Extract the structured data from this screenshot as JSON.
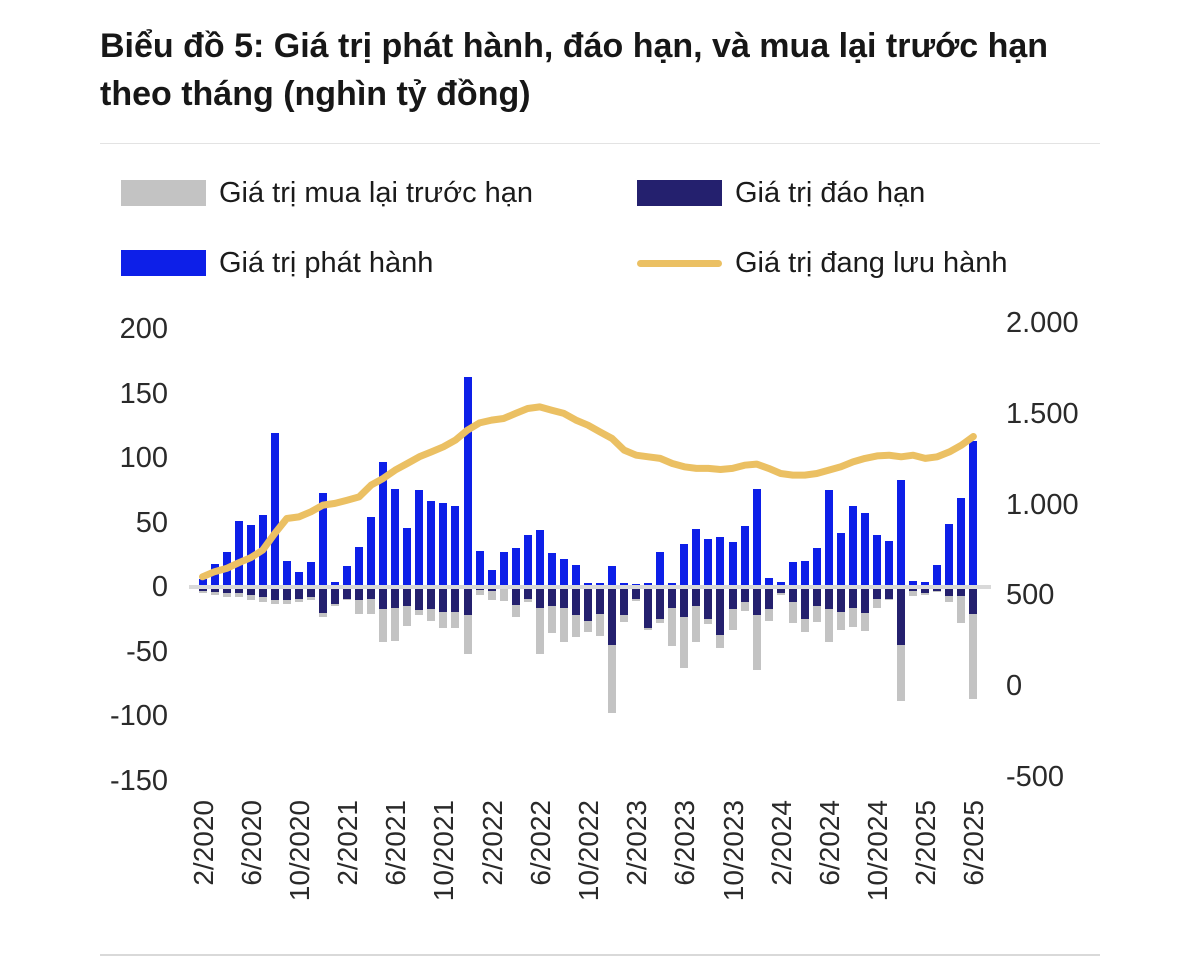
{
  "title": "Biểu đồ 5: Giá trị phát hành, đáo hạn, và mua lại trước hạn theo tháng (nghìn tỷ đồng)",
  "legend": {
    "items": [
      {
        "label": "Giá trị mua lại trước hạn",
        "color": "#c3c3c3",
        "shape": "bar"
      },
      {
        "label": "Giá trị đáo hạn",
        "color": "#24206e",
        "shape": "bar"
      },
      {
        "label": "Giá trị phát hành",
        "color": "#0d1fe8",
        "shape": "bar"
      },
      {
        "label": "Giá trị đang lưu hành",
        "color": "#ebc063",
        "shape": "line"
      }
    ]
  },
  "chart_data": {
    "type": "bar+line",
    "title": "Biểu đồ 5: Giá trị phát hành, đáo hạn, và mua lại trước hạn theo tháng (nghìn tỷ đồng)",
    "x": [
      "2/2020",
      "3/2020",
      "4/2020",
      "5/2020",
      "6/2020",
      "7/2020",
      "8/2020",
      "9/2020",
      "10/2020",
      "11/2020",
      "12/2020",
      "1/2021",
      "2/2021",
      "3/2021",
      "4/2021",
      "5/2021",
      "6/2021",
      "7/2021",
      "8/2021",
      "9/2021",
      "10/2021",
      "11/2021",
      "12/2021",
      "1/2022",
      "2/2022",
      "3/2022",
      "4/2022",
      "5/2022",
      "6/2022",
      "7/2022",
      "8/2022",
      "9/2022",
      "10/2022",
      "11/2022",
      "12/2022",
      "1/2023",
      "2/2023",
      "3/2023",
      "4/2023",
      "5/2023",
      "6/2023",
      "7/2023",
      "8/2023",
      "9/2023",
      "10/2023",
      "11/2023",
      "12/2023",
      "1/2024",
      "2/2024",
      "3/2024",
      "4/2024",
      "5/2024",
      "6/2024",
      "7/2024",
      "8/2024",
      "9/2024",
      "10/2024",
      "11/2024",
      "12/2024",
      "1/2025",
      "2/2025",
      "3/2025",
      "4/2025",
      "5/2025",
      "6/2025"
    ],
    "series": [
      {
        "key": "buyback",
        "name": "Giá trị mua lại trước hạn",
        "type": "bar",
        "stack": "negative",
        "color": "#c3c3c3",
        "axis": "left",
        "values": [
          -2,
          -2,
          -3,
          -3,
          -4,
          -4,
          -3,
          -3,
          -3,
          -2,
          -3,
          -2,
          -1,
          -11,
          -12,
          -26,
          -26,
          -15,
          -4,
          -9,
          -13,
          -13,
          -30,
          -4,
          -7,
          -10,
          -9,
          -3,
          -36,
          -21,
          -27,
          -17,
          -9,
          -17,
          -53,
          -5,
          -2,
          -1,
          -3,
          -30,
          -40,
          -28,
          -4,
          -10,
          -16,
          -7,
          -42,
          -9,
          -1,
          -16,
          -10,
          -12,
          -26,
          -14,
          -15,
          -14,
          -7,
          -1,
          -43,
          -4,
          -1,
          -1,
          -5,
          -21,
          -66
        ]
      },
      {
        "key": "maturity",
        "name": "Giá trị đáo hạn",
        "type": "bar",
        "stack": "negative",
        "color": "#24206e",
        "axis": "left",
        "values": [
          -3,
          -4,
          -5,
          -5,
          -6,
          -8,
          -10,
          -10,
          -9,
          -8,
          -20,
          -13,
          -9,
          -10,
          -9,
          -17,
          -16,
          -15,
          -18,
          -17,
          -19,
          -19,
          -22,
          -2,
          -3,
          -1,
          -14,
          -9,
          -16,
          -15,
          -16,
          -22,
          -26,
          -21,
          -45,
          -22,
          -9,
          -32,
          -25,
          -16,
          -23,
          -15,
          -25,
          -37,
          -17,
          -12,
          -22,
          -17,
          -5,
          -12,
          -25,
          -15,
          -17,
          -19,
          -16,
          -20,
          -9,
          -9,
          -45,
          -3,
          -5,
          -3,
          -7,
          -7,
          -21
        ]
      },
      {
        "key": "issuance",
        "name": "Giá trị phát hành",
        "type": "bar",
        "stack": "positive",
        "color": "#0d1fe8",
        "axis": "left",
        "values": [
          6,
          18,
          27,
          51,
          48,
          56,
          119,
          20,
          12,
          19,
          73,
          4,
          16,
          31,
          54,
          97,
          76,
          46,
          75,
          67,
          65,
          63,
          163,
          28,
          13,
          27,
          30,
          40,
          44,
          26,
          22,
          17,
          3,
          3,
          16,
          3,
          2,
          3,
          27,
          3,
          33,
          45,
          37,
          39,
          35,
          47,
          76,
          7,
          4,
          19,
          20,
          30,
          75,
          42,
          63,
          57,
          40,
          36,
          83,
          5,
          4,
          17,
          49,
          69,
          113
        ]
      },
      {
        "key": "outstanding",
        "name": "Giá trị đang lưu hành",
        "type": "line",
        "color": "#ebc063",
        "axis": "right",
        "values": [
          602,
          630,
          648,
          679,
          707,
          749,
          841,
          923,
          932,
          960,
          997,
          1006,
          1024,
          1042,
          1107,
          1144,
          1190,
          1226,
          1263,
          1290,
          1318,
          1355,
          1410,
          1450,
          1465,
          1474,
          1502,
          1529,
          1538,
          1520,
          1502,
          1465,
          1437,
          1400,
          1364,
          1300,
          1272,
          1263,
          1254,
          1226,
          1208,
          1199,
          1199,
          1193,
          1199,
          1217,
          1223,
          1199,
          1171,
          1162,
          1162,
          1171,
          1190,
          1208,
          1235,
          1254,
          1268,
          1272,
          1263,
          1272,
          1254,
          1263,
          1290,
          1327,
          1375
        ]
      }
    ],
    "left_axis": {
      "tick_values": [
        200,
        150,
        100,
        50,
        0,
        -50,
        -100,
        -150
      ],
      "tick_labels": [
        "200",
        "150",
        "100",
        "50",
        "0",
        "-50",
        "-100",
        "-150"
      ],
      "range": [
        -150,
        200
      ]
    },
    "right_axis": {
      "tick_values": [
        2000,
        1500,
        1000,
        500,
        0,
        -500
      ],
      "tick_labels": [
        "2.000",
        "1.500",
        "1.000",
        "500",
        "0",
        "-500"
      ],
      "range": [
        -500,
        2000
      ]
    },
    "x_tick_labels": [
      "2/2020",
      "6/2020",
      "10/2020",
      "2/2021",
      "6/2021",
      "10/2021",
      "2/2022",
      "6/2022",
      "10/2022",
      "2/2023",
      "6/2023",
      "10/2023",
      "2/2024",
      "6/2024",
      "10/2024",
      "2/2025",
      "6/2025"
    ],
    "x_tick_every": 4,
    "grid": false,
    "legend_position": "top"
  }
}
